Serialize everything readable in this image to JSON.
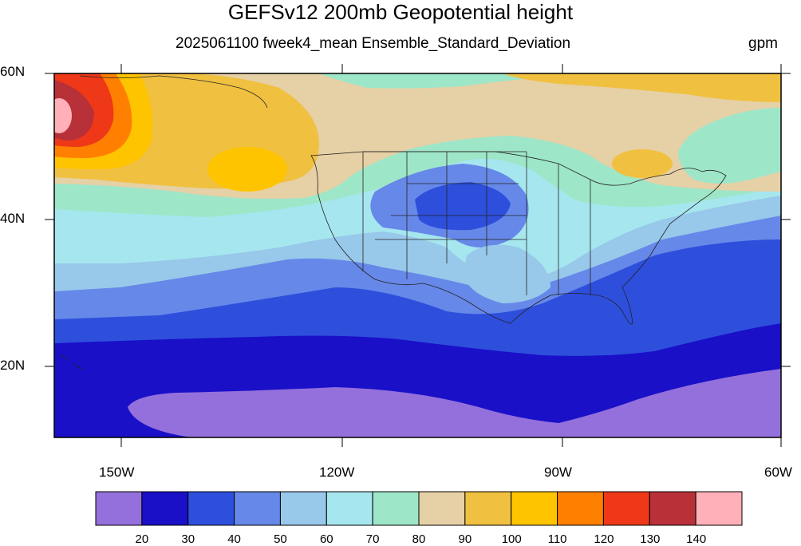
{
  "title": "GEFSv12 200mb Geopotential height",
  "subtitle": "2025061100 fweek4_mean Ensemble_Standard_Deviation",
  "units": "gpm",
  "map": {
    "lat_labels": [
      "60N",
      "40N",
      "20N"
    ],
    "lon_labels": [
      "150W",
      "120W",
      "90W",
      "60W"
    ],
    "lat_range": [
      10,
      60
    ],
    "lon_range": [
      -159,
      -60
    ]
  },
  "colorbar": {
    "levels": [
      "20",
      "30",
      "40",
      "50",
      "60",
      "70",
      "80",
      "90",
      "100",
      "110",
      "120",
      "130",
      "140"
    ],
    "colors": [
      "#9370db",
      "#1a10c8",
      "#2e4fdc",
      "#6688e8",
      "#98c8ea",
      "#a6e6ee",
      "#9ee6c8",
      "#e6d0a6",
      "#f0c040",
      "#ffc400",
      "#ff8000",
      "#ee3818",
      "#b83038",
      "#ffb0b8"
    ]
  }
}
